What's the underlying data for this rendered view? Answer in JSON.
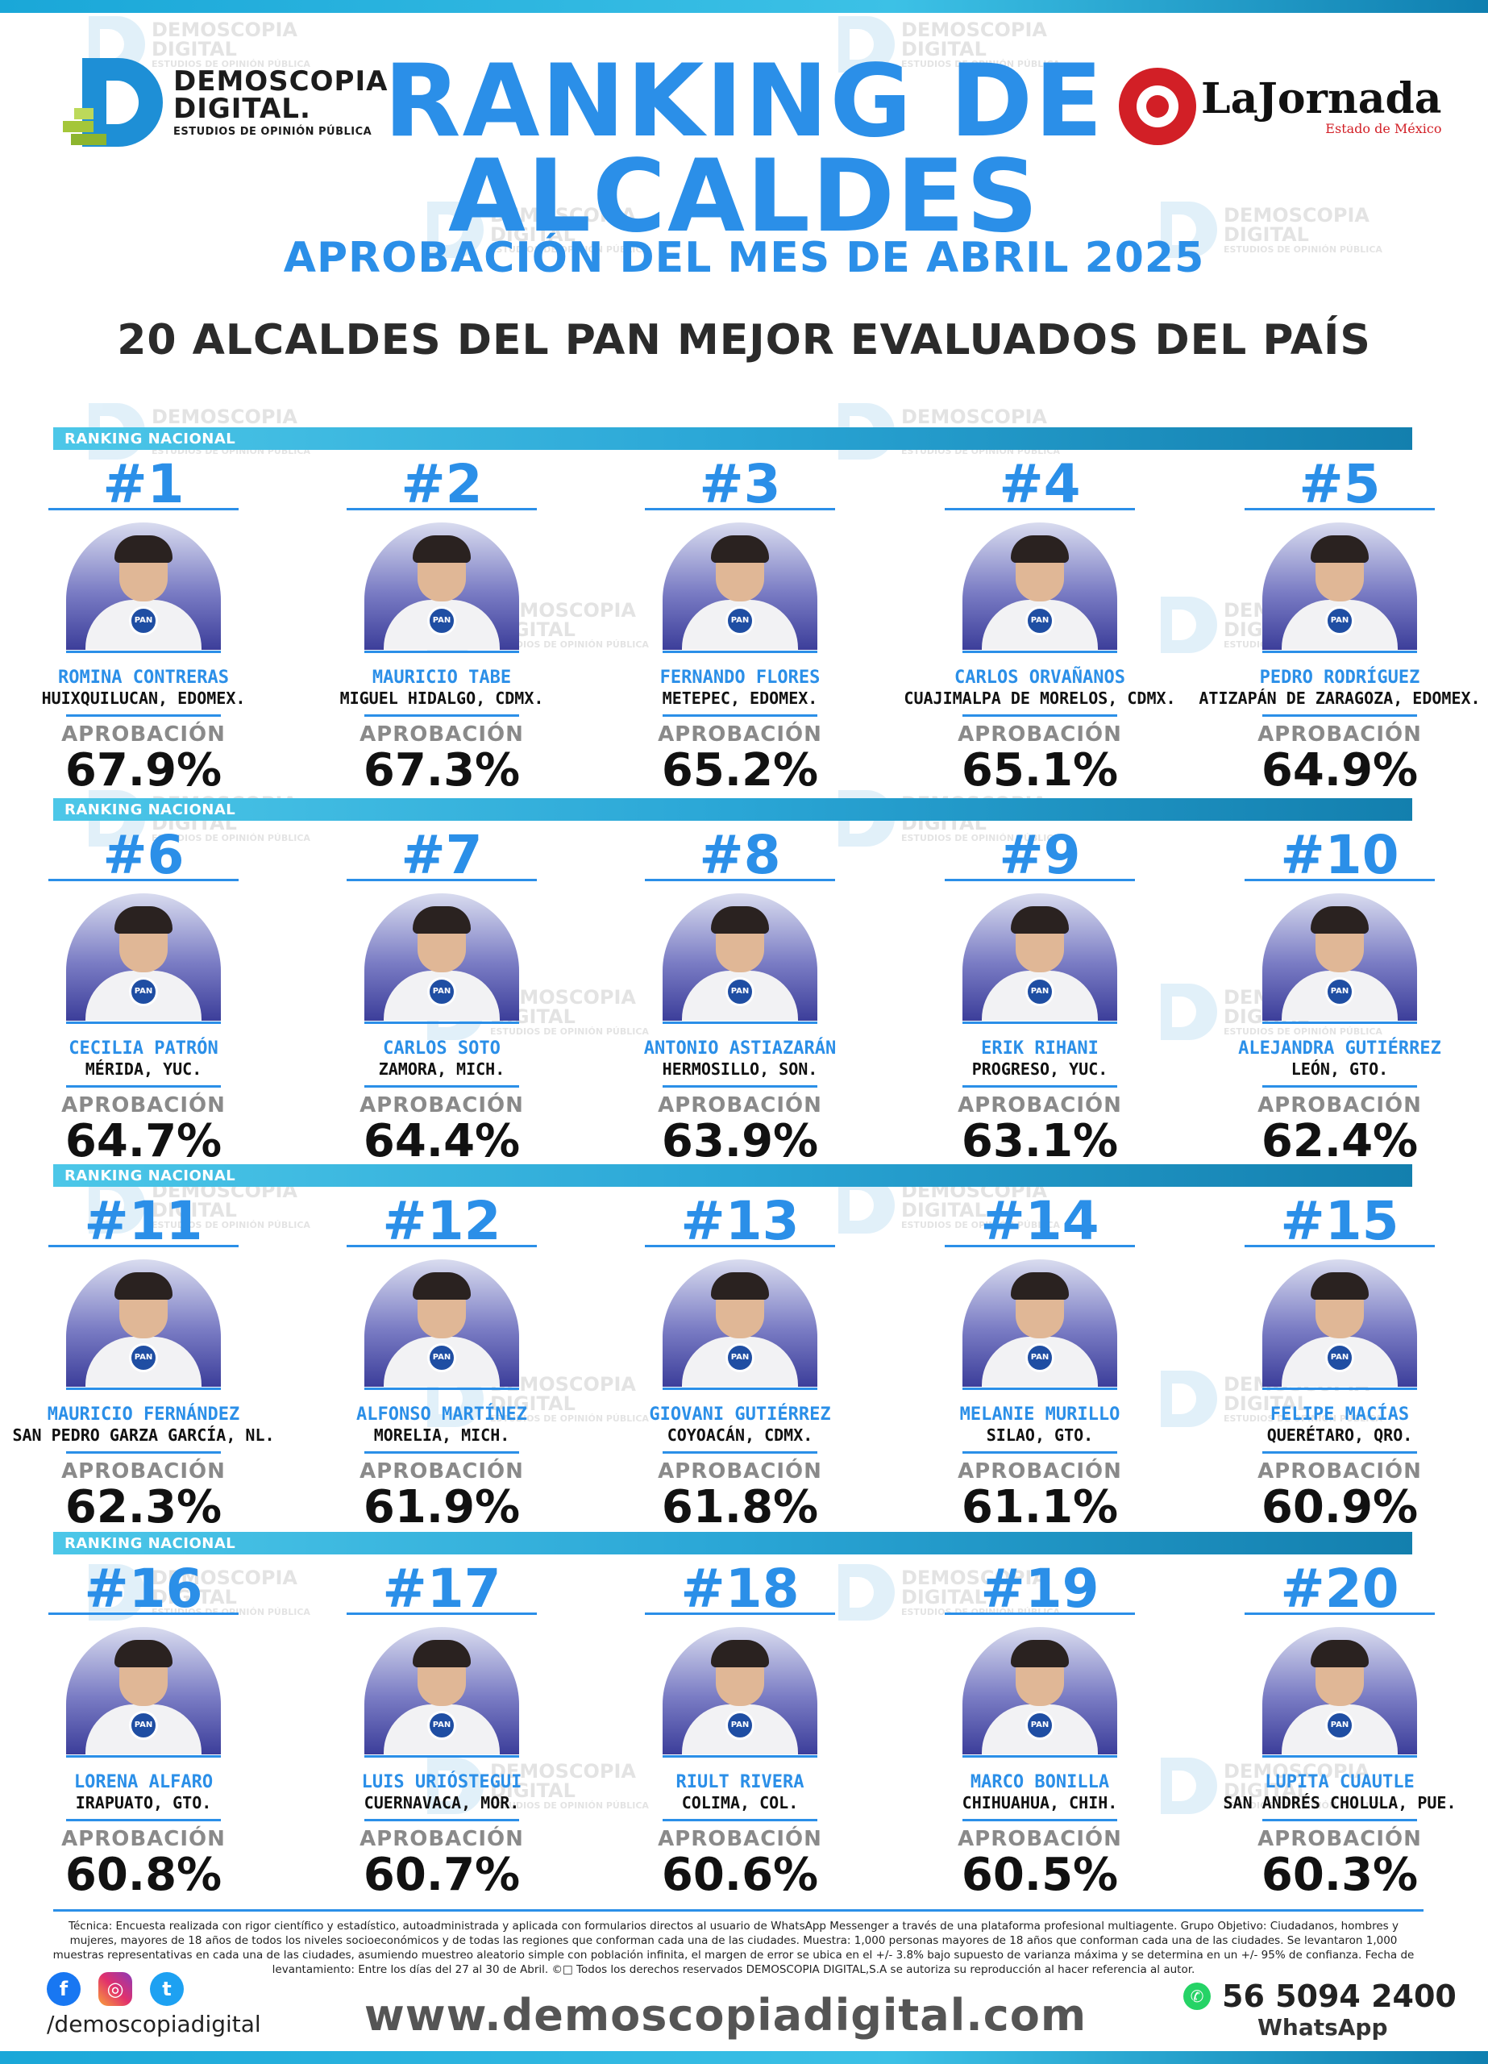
{
  "header": {
    "brand_left": {
      "name_line1": "DEMOSCOPIA",
      "name_line2": "DIGITAL.",
      "tagline": "ESTUDIOS DE OPINIÓN PÚBLICA"
    },
    "brand_right": {
      "name": "LaJornada",
      "edition": "Estado de México"
    },
    "title_line1": "RANKING DE",
    "title_line2": "ALCALDES",
    "title_line3": "APROBACIÓN DEL MES DE ABRIL 2025",
    "subtitle": "20 ALCALDES DEL PAN MEJOR EVALUADOS DEL PAÍS"
  },
  "watermark": {
    "line1": "DEMOSCOPIA",
    "line2": "DIGITAL",
    "line3": "ESTUDIOS DE OPINIÓN PÚBLICA"
  },
  "band_label": "RANKING NACIONAL",
  "approval_label": "APROBACIÓN",
  "party_badge": "PAN",
  "mayors": [
    {
      "rank": "#1",
      "name": "ROMINA CONTRERAS",
      "place": "HUIXQUILUCAN, EDOMEX.",
      "approval": "67.9%"
    },
    {
      "rank": "#2",
      "name": "MAURICIO TABE",
      "place": "MIGUEL HIDALGO, CDMX.",
      "approval": "67.3%"
    },
    {
      "rank": "#3",
      "name": "FERNANDO FLORES",
      "place": "METEPEC, EDOMEX.",
      "approval": "65.2%"
    },
    {
      "rank": "#4",
      "name": "CARLOS ORVAÑANOS",
      "place": "CUAJIMALPA DE MORELOS, CDMX.",
      "approval": "65.1%"
    },
    {
      "rank": "#5",
      "name": "PEDRO RODRÍGUEZ",
      "place": "ATIZAPÁN DE ZARAGOZA, EDOMEX.",
      "approval": "64.9%"
    },
    {
      "rank": "#6",
      "name": "CECILIA PATRÓN",
      "place": "MÉRIDA, YUC.",
      "approval": "64.7%"
    },
    {
      "rank": "#7",
      "name": "CARLOS SOTO",
      "place": "ZAMORA, MICH.",
      "approval": "64.4%"
    },
    {
      "rank": "#8",
      "name": "ANTONIO ASTIAZARÁN",
      "place": "HERMOSILLO, SON.",
      "approval": "63.9%"
    },
    {
      "rank": "#9",
      "name": "ERIK RIHANI",
      "place": "PROGRESO, YUC.",
      "approval": "63.1%"
    },
    {
      "rank": "#10",
      "name": "ALEJANDRA GUTIÉRREZ",
      "place": "LEÓN, GTO.",
      "approval": "62.4%"
    },
    {
      "rank": "#11",
      "name": "MAURICIO FERNÁNDEZ",
      "place": "SAN PEDRO GARZA GARCÍA, NL.",
      "approval": "62.3%"
    },
    {
      "rank": "#12",
      "name": "ALFONSO MARTÍNEZ",
      "place": "MORELIA, MICH.",
      "approval": "61.9%"
    },
    {
      "rank": "#13",
      "name": "GIOVANI GUTIÉRREZ",
      "place": "COYOACÁN, CDMX.",
      "approval": "61.8%"
    },
    {
      "rank": "#14",
      "name": "MELANIE MURILLO",
      "place": "SILAO, GTO.",
      "approval": "61.1%"
    },
    {
      "rank": "#15",
      "name": "FELIPE MACÍAS",
      "place": "QUERÉTARO, QRO.",
      "approval": "60.9%"
    },
    {
      "rank": "#16",
      "name": "LORENA ALFARO",
      "place": "IRAPUATO, GTO.",
      "approval": "60.8%"
    },
    {
      "rank": "#17",
      "name": "LUIS URIÓSTEGUI",
      "place": "CUERNAVACA, MOR.",
      "approval": "60.7%"
    },
    {
      "rank": "#18",
      "name": "RIULT RIVERA",
      "place": "COLIMA, COL.",
      "approval": "60.6%"
    },
    {
      "rank": "#19",
      "name": "MARCO BONILLA",
      "place": "CHIHUAHUA, CHIH.",
      "approval": "60.5%"
    },
    {
      "rank": "#20",
      "name": "LUPITA CUAUTLE",
      "place": "SAN ANDRÉS CHOLULA, PUE.",
      "approval": "60.3%"
    }
  ],
  "footer": {
    "technical_note": "Técnica: Encuesta realizada con rigor científico y estadístico, autoadministrada y aplicada con formularios directos al usuario de WhatsApp Messenger a través de una plataforma profesional multiagente. Grupo Objetivo: Ciudadanos, hombres y mujeres, mayores de 18 años de todos los niveles socioeconómicos y de todas las regiones que conforman cada una de las ciudades. Muestra: 1,000 personas mayores de 18 años que conforman cada una de las ciudades. Se levantaron 1,000 muestras representativas en cada una de las ciudades, asumiendo muestreo aleatorio simple con población infinita, el margen de error se ubica en el +/- 3.8% bajo supuesto de varianza máxima y se determina en un +/- 95% de confianza. Fecha de levantamiento: Entre los días del 27 al 30 de Abril. ©□ Todos los derechos reservados DEMOSCOPIA DIGITAL,S.A se autoriza su reproducción al hacer referencia al autor.",
    "social_handle": "/demoscopiadigital",
    "website": "www.demoscopiadigital.com",
    "whatsapp_number": "56 5094 2400",
    "whatsapp_label": "WhatsApp",
    "icons": {
      "facebook": "f",
      "instagram": "◎",
      "twitter": "t",
      "whatsapp": "✆"
    }
  },
  "colors": {
    "accent": "#2b8fe8",
    "band": "#2aa6d6",
    "party": "#1f4ea3"
  }
}
